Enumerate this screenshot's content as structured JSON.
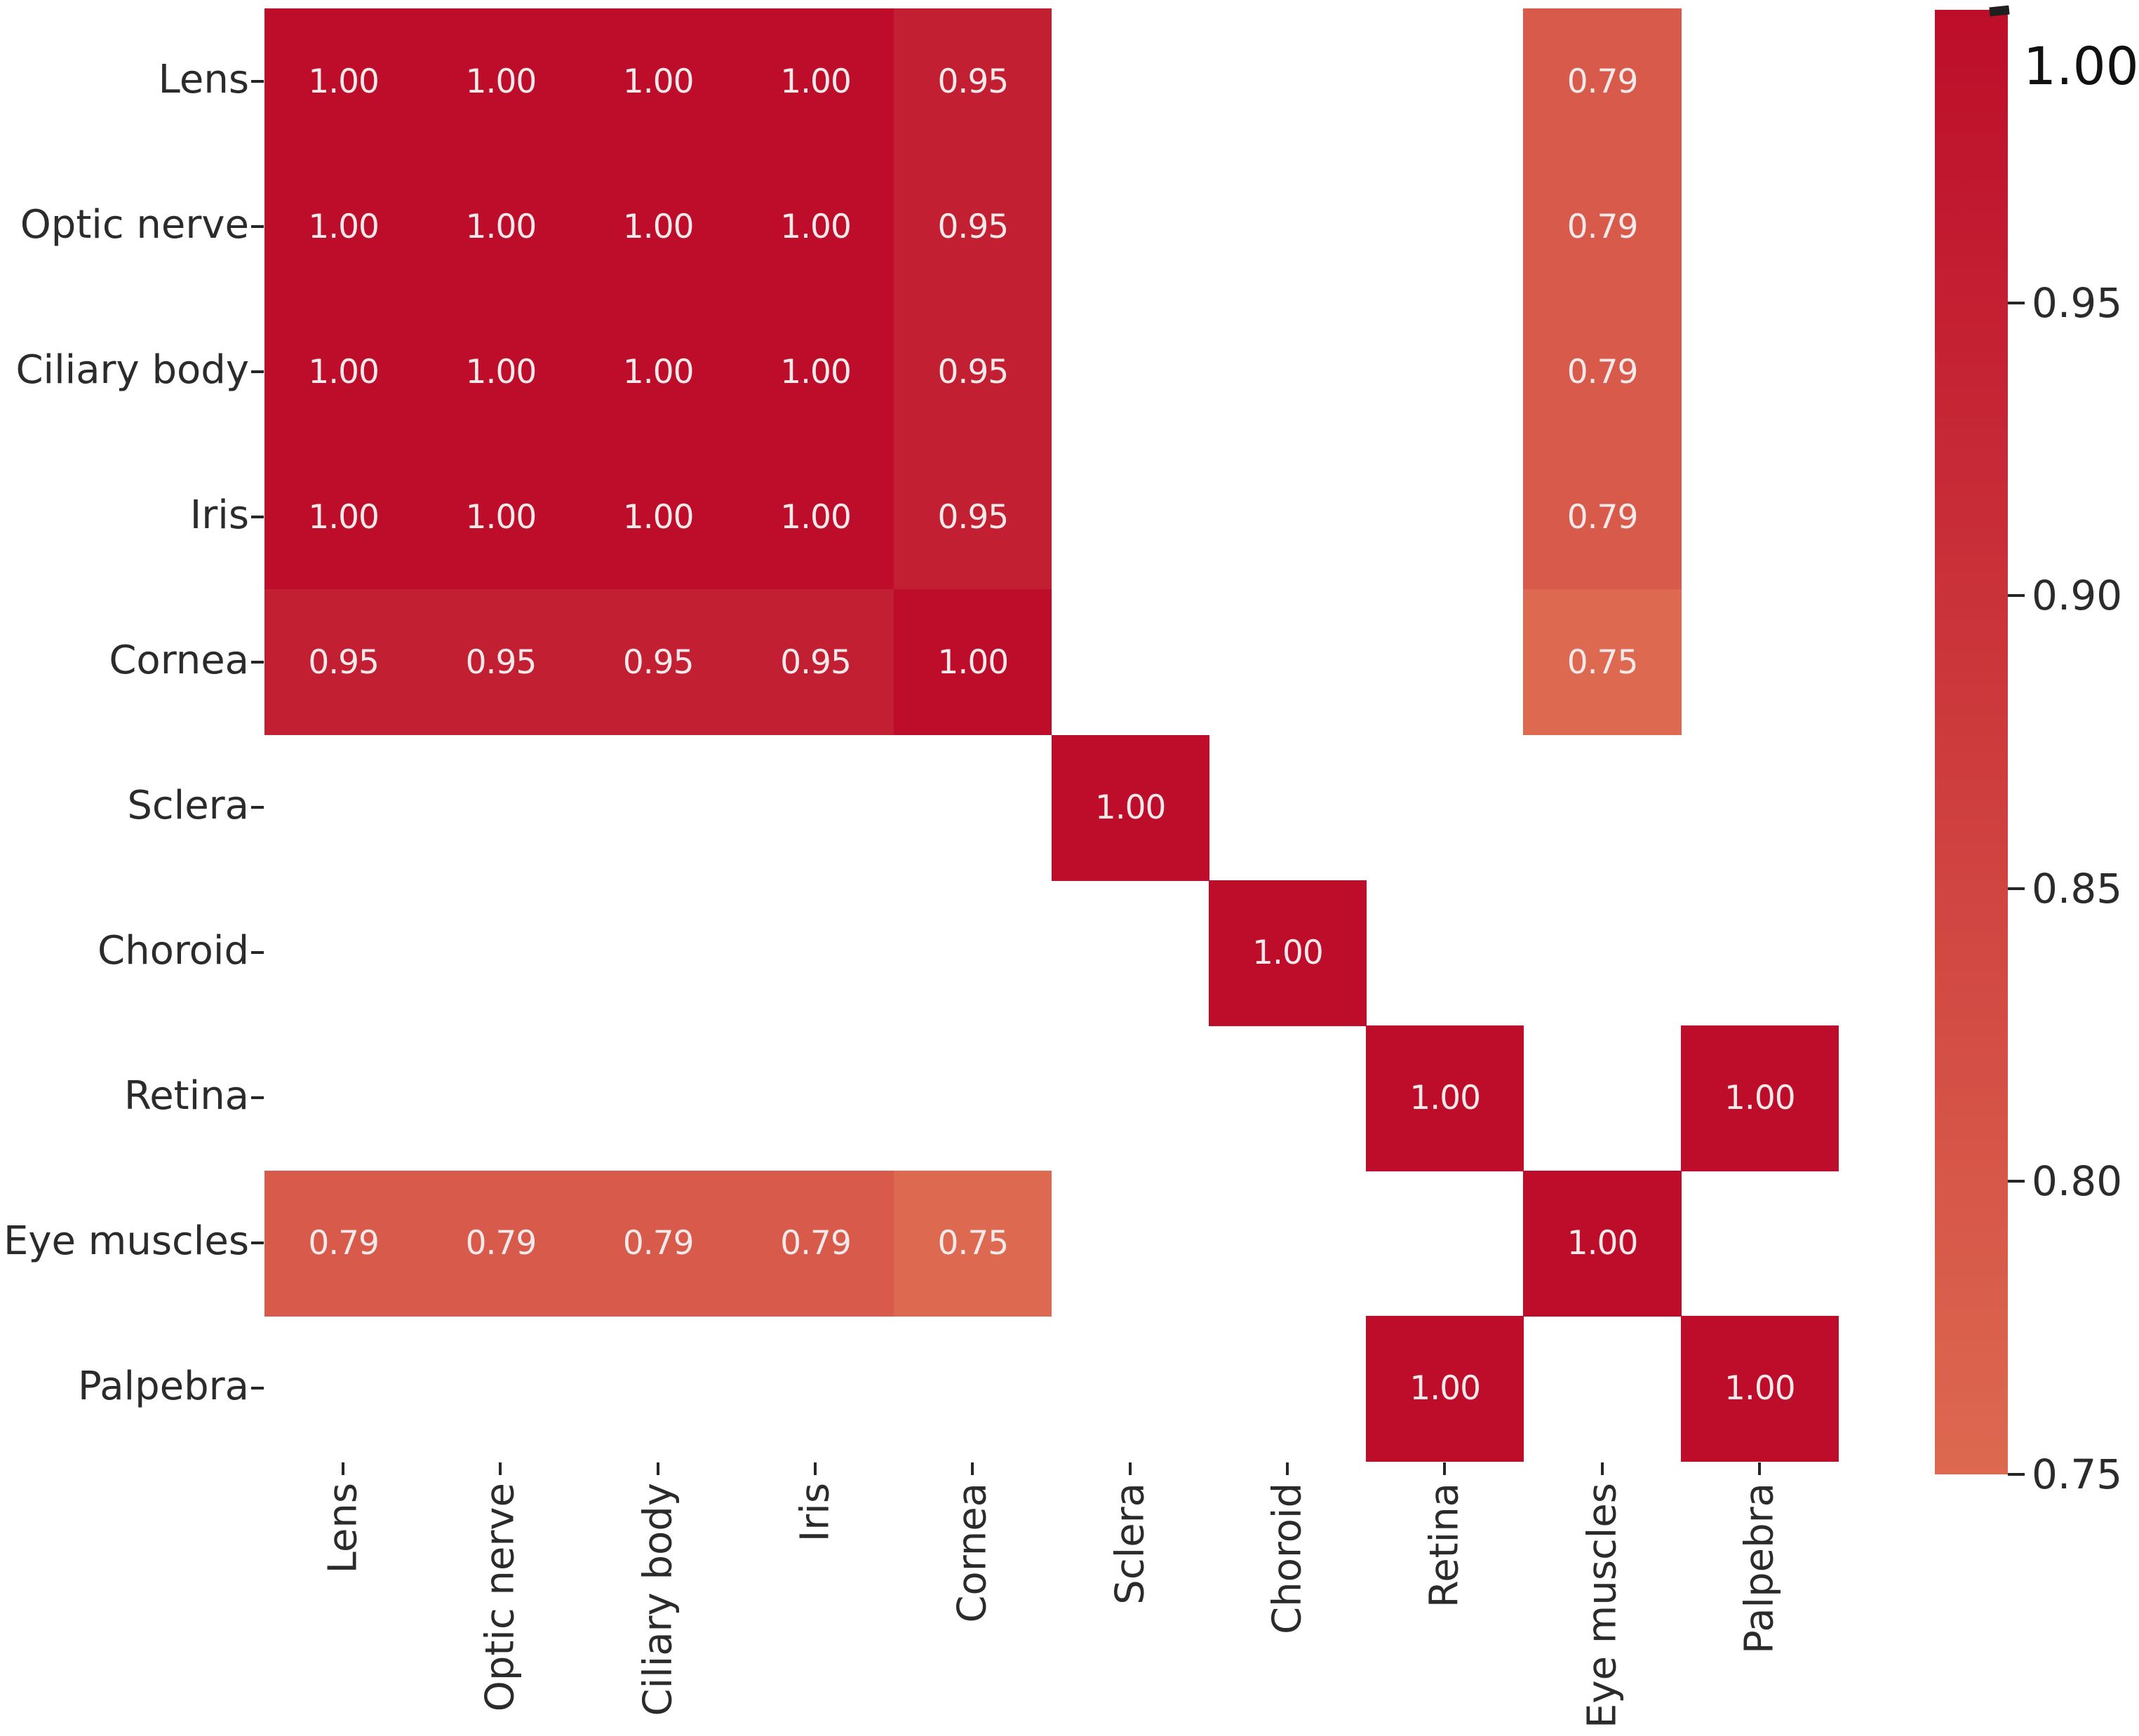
{
  "chart_data": {
    "type": "heatmap",
    "title": "",
    "xlabel": "",
    "ylabel": "",
    "x_categories": [
      "Lens",
      "Optic nerve",
      "Ciliary body",
      "Iris",
      "Cornea",
      "Sclera",
      "Choroid",
      "Retina",
      "Eye muscles",
      "Palpebra"
    ],
    "y_categories": [
      "Lens",
      "Optic nerve",
      "Ciliary body",
      "Iris",
      "Cornea",
      "Sclera",
      "Choroid",
      "Retina",
      "Eye muscles",
      "Palpebra"
    ],
    "matrix": [
      [
        1.0,
        1.0,
        1.0,
        1.0,
        0.95,
        null,
        null,
        null,
        0.79,
        null
      ],
      [
        1.0,
        1.0,
        1.0,
        1.0,
        0.95,
        null,
        null,
        null,
        0.79,
        null
      ],
      [
        1.0,
        1.0,
        1.0,
        1.0,
        0.95,
        null,
        null,
        null,
        0.79,
        null
      ],
      [
        1.0,
        1.0,
        1.0,
        1.0,
        0.95,
        null,
        null,
        null,
        0.79,
        null
      ],
      [
        0.95,
        0.95,
        0.95,
        0.95,
        1.0,
        null,
        null,
        null,
        0.75,
        null
      ],
      [
        null,
        null,
        null,
        null,
        null,
        1.0,
        null,
        null,
        null,
        null
      ],
      [
        null,
        null,
        null,
        null,
        null,
        null,
        1.0,
        null,
        null,
        null
      ],
      [
        null,
        null,
        null,
        null,
        null,
        null,
        null,
        1.0,
        null,
        1.0
      ],
      [
        0.79,
        0.79,
        0.79,
        0.79,
        0.75,
        null,
        null,
        null,
        1.0,
        null
      ],
      [
        null,
        null,
        null,
        null,
        null,
        null,
        null,
        1.0,
        null,
        1.0
      ]
    ],
    "value_format_decimals": 2,
    "annotations_shown": true,
    "grid": false,
    "legend_position": "right-colorbar",
    "cell_text_color": "#f2eaea",
    "label_color": "#2b2b2b",
    "colorbar": {
      "orientation": "vertical",
      "vmin": 0.75,
      "vmax": 1.0,
      "ticks": [
        "1.00",
        "0.95",
        "0.90",
        "0.85",
        "0.80",
        "0.75"
      ],
      "tick_values": [
        1.0,
        0.95,
        0.9,
        0.85,
        0.8,
        0.75
      ],
      "color_at_vmax": "#bd0d2a",
      "color_at_vmin": "#dd6950",
      "top_label": "1.00"
    }
  }
}
